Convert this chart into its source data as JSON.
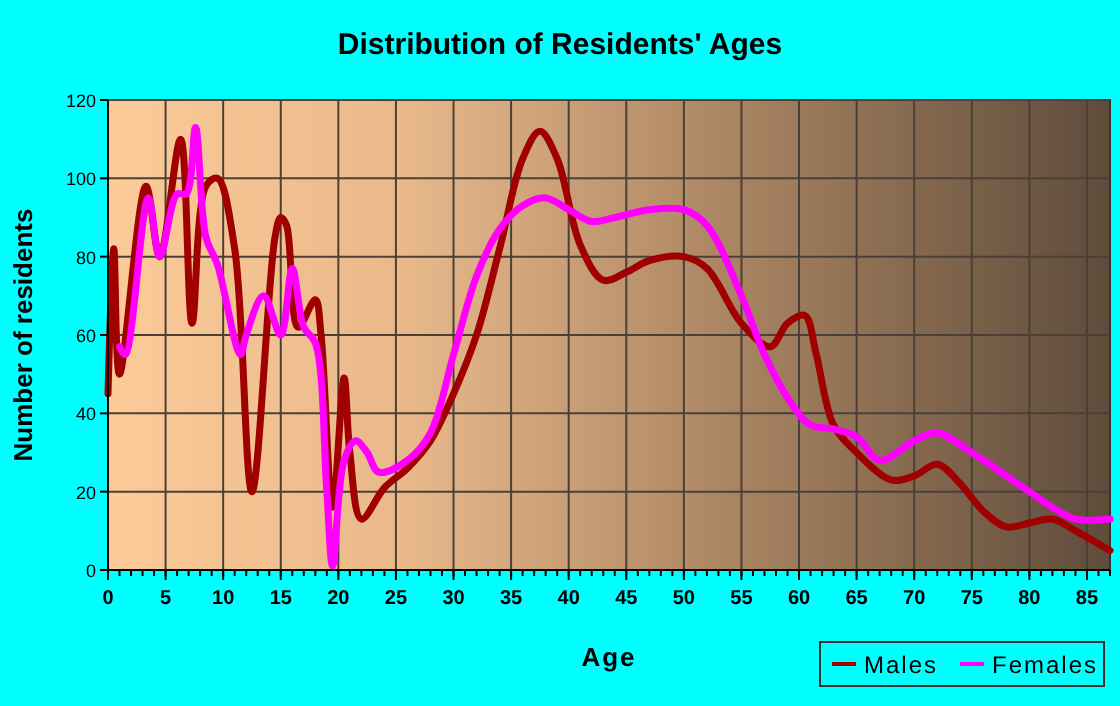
{
  "chart_data": {
    "type": "line",
    "title": "Distribution of Residents' Ages",
    "xlabel": "Age",
    "ylabel": "Number of residents",
    "xlim": [
      0,
      87
    ],
    "xticks": [
      0,
      5,
      10,
      15,
      20,
      25,
      30,
      35,
      40,
      45,
      50,
      55,
      60,
      65,
      70,
      75,
      80,
      85
    ],
    "ylim": [
      0,
      120
    ],
    "yticks": [
      0,
      20,
      40,
      60,
      80,
      100,
      120
    ],
    "grid": true,
    "legend": "bottom right",
    "marker": "none",
    "line_style": "solid",
    "series": [
      {
        "name": "Males",
        "color": "#a00000",
        "x": [
          0,
          0.5,
          1,
          3.3,
          4.5,
          6.3,
          7.3,
          8.5,
          9.5,
          11,
          12.5,
          14.5,
          15,
          15.5,
          16.5,
          18,
          18.5,
          19.5,
          20.5,
          21,
          22,
          24,
          26,
          28,
          30,
          32,
          34,
          36,
          37.5,
          39,
          41,
          43,
          45,
          47,
          50,
          52,
          55,
          57.5,
          59,
          60.5,
          61.5,
          63,
          65,
          68,
          70,
          72,
          74,
          76,
          78,
          80,
          82,
          84,
          87
        ],
        "values": [
          45,
          82,
          50,
          98,
          80,
          110,
          63,
          98,
          100,
          82,
          20,
          85,
          90,
          88,
          62,
          69,
          60,
          16,
          49,
          30,
          13,
          21,
          26,
          33,
          45,
          60,
          82,
          105,
          112,
          105,
          83,
          74,
          76,
          79,
          80,
          77,
          63,
          57,
          63,
          65,
          55,
          37,
          30,
          23,
          24,
          27,
          22,
          15,
          11,
          12,
          13,
          10,
          5
        ]
      },
      {
        "name": "Females",
        "color": "#ff00ff",
        "x": [
          1,
          1.5,
          3.5,
          4.5,
          6,
          6.8,
          7.6,
          8.5,
          9.5,
          11.5,
          12,
          13.5,
          15,
          16,
          17,
          18,
          19,
          19.5,
          20.5,
          21.5,
          22.5,
          23.5,
          26,
          28,
          30,
          32,
          34,
          36,
          38,
          40,
          42,
          44,
          47,
          50,
          52,
          55,
          57,
          59,
          61,
          63,
          65,
          67,
          70,
          72,
          75,
          78,
          80,
          82,
          84,
          87
        ],
        "values": [
          57,
          55,
          95,
          80,
          96,
          96,
          113,
          85,
          78,
          55,
          60,
          70,
          60,
          77,
          62,
          58,
          20,
          1,
          28,
          33,
          30,
          25,
          28,
          35,
          55,
          75,
          87,
          93,
          95,
          92,
          89,
          90,
          92,
          92,
          88,
          70,
          55,
          44,
          37,
          36,
          34,
          28,
          33,
          35,
          30,
          24,
          20,
          16,
          13,
          13
        ]
      }
    ]
  }
}
